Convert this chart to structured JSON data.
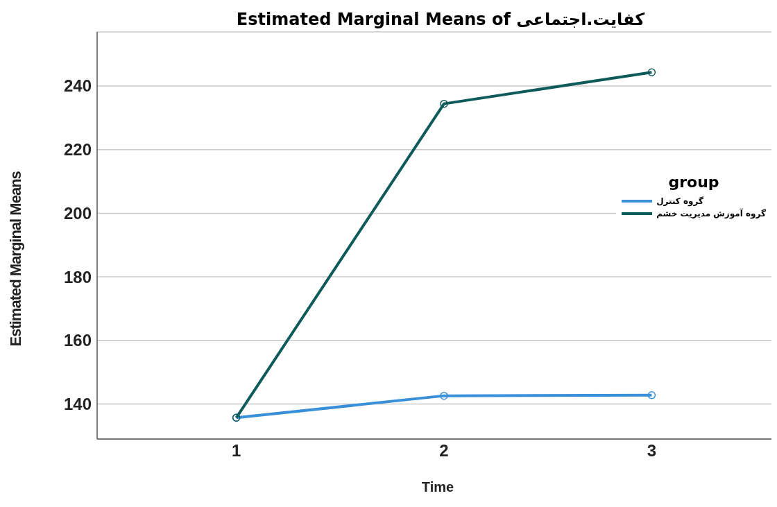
{
  "chart_data": {
    "type": "line",
    "title": "Estimated Marginal Means of کفایت.اجتماعی",
    "xlabel": "Time",
    "ylabel": "Estimated Marginal Means",
    "legend_title": "group",
    "categories": [
      "1",
      "2",
      "3"
    ],
    "series": [
      {
        "name": "گروه کنترل",
        "color": "#3a8fd9",
        "values": [
          135.7,
          142.6,
          142.8
        ]
      },
      {
        "name": "گروه آموزش مدیریت خشم",
        "color": "#0f5a5a",
        "values": [
          135.7,
          234.4,
          244.3
        ]
      }
    ],
    "ylim": [
      129,
      257
    ],
    "yticks": [
      140,
      160,
      180,
      200,
      220,
      240
    ],
    "grid": "y",
    "legend": "right",
    "marker": "circle",
    "line_style": "solid"
  }
}
